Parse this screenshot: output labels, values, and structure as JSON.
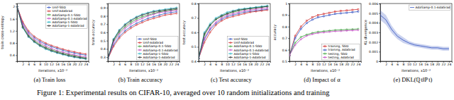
{
  "caption": "Figure 1: Experimental results on CIFAR-10, averaged over 10 random initializations and training",
  "chart_data": [
    {
      "type": "line",
      "title": "(a) Train loss",
      "x_label": "iterations, x10⁻³",
      "y_label": "train cross-entropy",
      "x": [
        0,
        2,
        4,
        6,
        8,
        10,
        12,
        14,
        16,
        18,
        20,
        22,
        24
      ],
      "xlim": [
        0,
        25
      ],
      "xticks": [
        2,
        4,
        6,
        8,
        10,
        12,
        14,
        16,
        18,
        20,
        22,
        24
      ],
      "ylim": [
        0.2,
        2.1
      ],
      "yticks": [
        0.4,
        0.8,
        1.2,
        1.6,
        2.0
      ],
      "grid": false,
      "legend": "upper right",
      "series": [
        {
          "name": "Unif-SGD",
          "color": "#3050c0",
          "marker": "circle",
          "values": [
            2.0,
            1.45,
            1.15,
            0.98,
            0.85,
            0.76,
            0.68,
            0.62,
            0.56,
            0.51,
            0.47,
            0.43,
            0.4
          ]
        },
        {
          "name": "Unif-AdaGrad",
          "color": "#d03030",
          "marker": "circle",
          "values": [
            2.0,
            1.5,
            1.2,
            1.02,
            0.9,
            0.8,
            0.72,
            0.66,
            0.6,
            0.55,
            0.51,
            0.47,
            0.44
          ]
        },
        {
          "name": "AdaSamp-0.1-SGD",
          "color": "#30a030",
          "marker": "circle",
          "values": [
            2.0,
            1.35,
            1.05,
            0.88,
            0.75,
            0.66,
            0.58,
            0.52,
            0.46,
            0.42,
            0.38,
            0.34,
            0.31
          ]
        },
        {
          "name": "AdaSamp-0.1-AdaGrad",
          "color": "#c040c0",
          "marker": "circle",
          "values": [
            2.0,
            1.4,
            1.1,
            0.92,
            0.8,
            0.7,
            0.62,
            0.55,
            0.5,
            0.45,
            0.41,
            0.37,
            0.34
          ]
        },
        {
          "name": "AdaSamp-1-SGD",
          "color": "#20b0c0",
          "marker": "circle",
          "values": [
            2.0,
            1.3,
            1.0,
            0.83,
            0.7,
            0.6,
            0.53,
            0.47,
            0.42,
            0.37,
            0.33,
            0.3,
            0.27
          ]
        },
        {
          "name": "AdaSamp-1-AdaGrad",
          "color": "#333333",
          "marker": "circle",
          "values": [
            2.0,
            1.32,
            1.02,
            0.85,
            0.72,
            0.63,
            0.55,
            0.49,
            0.44,
            0.39,
            0.35,
            0.32,
            0.29
          ]
        }
      ]
    },
    {
      "type": "line",
      "title": "(b) Train accuracy",
      "x_label": "iterations, x10⁻³",
      "y_label": "train accuracy",
      "x": [
        0,
        2,
        4,
        6,
        8,
        10,
        12,
        14,
        16,
        18,
        20,
        22,
        24
      ],
      "xlim": [
        0,
        25
      ],
      "xticks": [
        2,
        4,
        6,
        8,
        10,
        12,
        14,
        16,
        18,
        20,
        22,
        24
      ],
      "ylim": [
        0.25,
        0.95
      ],
      "yticks": [
        0.3,
        0.4,
        0.5,
        0.6,
        0.7,
        0.8,
        0.9
      ],
      "grid": false,
      "legend": "lower right",
      "series": [
        {
          "name": "Unif-SGD",
          "color": "#3050c0",
          "marker": "circle",
          "values": [
            0.28,
            0.45,
            0.55,
            0.62,
            0.67,
            0.71,
            0.74,
            0.77,
            0.79,
            0.81,
            0.83,
            0.84,
            0.85
          ]
        },
        {
          "name": "Unif-AdaGrad",
          "color": "#d03030",
          "marker": "circle",
          "values": [
            0.28,
            0.43,
            0.53,
            0.6,
            0.65,
            0.69,
            0.72,
            0.75,
            0.77,
            0.79,
            0.81,
            0.82,
            0.83
          ]
        },
        {
          "name": "AdaSamp-0.1-SGD",
          "color": "#30a030",
          "marker": "circle",
          "values": [
            0.28,
            0.5,
            0.6,
            0.67,
            0.72,
            0.76,
            0.79,
            0.81,
            0.83,
            0.85,
            0.86,
            0.87,
            0.88
          ]
        },
        {
          "name": "AdaSamp-0.1-AdaGrad",
          "color": "#c040c0",
          "marker": "circle",
          "values": [
            0.28,
            0.48,
            0.58,
            0.65,
            0.7,
            0.74,
            0.77,
            0.8,
            0.82,
            0.84,
            0.85,
            0.86,
            0.87
          ]
        },
        {
          "name": "AdaSamp-1-SGD",
          "color": "#20b0c0",
          "marker": "circle",
          "values": [
            0.28,
            0.52,
            0.63,
            0.7,
            0.75,
            0.79,
            0.82,
            0.84,
            0.86,
            0.87,
            0.88,
            0.89,
            0.9
          ]
        },
        {
          "name": "AdaSamp-1-AdaGrad",
          "color": "#333333",
          "marker": "circle",
          "values": [
            0.28,
            0.51,
            0.62,
            0.69,
            0.74,
            0.78,
            0.81,
            0.83,
            0.85,
            0.86,
            0.87,
            0.88,
            0.89
          ]
        }
      ]
    },
    {
      "type": "line",
      "title": "(c) Test accuracy",
      "x_label": "iterations, x10⁻³",
      "y_label": "test accuracy",
      "x": [
        0,
        2,
        4,
        6,
        8,
        10,
        12,
        14,
        16,
        18,
        20,
        22,
        24
      ],
      "xlim": [
        0,
        25
      ],
      "xticks": [
        2,
        4,
        6,
        8,
        10,
        12,
        14,
        16,
        18,
        20,
        22,
        24
      ],
      "ylim": [
        0.4,
        0.8
      ],
      "yticks": [
        0.4,
        0.5,
        0.6,
        0.7,
        0.8
      ],
      "grid": false,
      "legend": "lower right",
      "series": [
        {
          "name": "Unif-SGD",
          "color": "#3050c0",
          "marker": "circle",
          "values": [
            0.42,
            0.55,
            0.62,
            0.66,
            0.69,
            0.71,
            0.72,
            0.73,
            0.74,
            0.745,
            0.75,
            0.755,
            0.76
          ]
        },
        {
          "name": "Unif-AdaGrad",
          "color": "#d03030",
          "marker": "circle",
          "values": [
            0.42,
            0.53,
            0.6,
            0.65,
            0.68,
            0.7,
            0.71,
            0.72,
            0.73,
            0.74,
            0.745,
            0.75,
            0.755
          ]
        },
        {
          "name": "AdaSamp-0.1-SGD",
          "color": "#30a030",
          "marker": "circle",
          "values": [
            0.42,
            0.58,
            0.65,
            0.69,
            0.71,
            0.73,
            0.74,
            0.75,
            0.76,
            0.765,
            0.77,
            0.775,
            0.78
          ]
        },
        {
          "name": "AdaSamp-0.1-AdaGrad",
          "color": "#c040c0",
          "marker": "circle",
          "values": [
            0.42,
            0.56,
            0.63,
            0.67,
            0.7,
            0.72,
            0.73,
            0.74,
            0.75,
            0.755,
            0.76,
            0.765,
            0.77
          ]
        },
        {
          "name": "AdaSamp-1-SGD",
          "color": "#20b0c0",
          "marker": "circle",
          "values": [
            0.42,
            0.6,
            0.66,
            0.7,
            0.72,
            0.74,
            0.75,
            0.76,
            0.765,
            0.77,
            0.775,
            0.78,
            0.785
          ]
        },
        {
          "name": "AdaSamp-1-AdaGrad",
          "color": "#333333",
          "marker": "circle",
          "values": [
            0.42,
            0.59,
            0.65,
            0.69,
            0.715,
            0.73,
            0.745,
            0.755,
            0.76,
            0.765,
            0.77,
            0.775,
            0.78
          ]
        }
      ]
    },
    {
      "type": "line",
      "title": "(d) Impact of α",
      "x_label": "iterations, x10⁻³",
      "y_label": "accuracy",
      "x": [
        0,
        2,
        4,
        6,
        8,
        10,
        12,
        14,
        16,
        18,
        20,
        22,
        24
      ],
      "xlim": [
        0,
        25
      ],
      "xticks": [
        2,
        4,
        6,
        8,
        10,
        12,
        14,
        16,
        18,
        20,
        22,
        24
      ],
      "ylim": [
        0.5,
        1.0
      ],
      "yticks": [
        0.5,
        0.6,
        0.7,
        0.8,
        0.9,
        1.0
      ],
      "grid": false,
      "legend": "lower right",
      "series": [
        {
          "name": "training, SGD",
          "color": "#d03030",
          "marker": "square",
          "values": [
            0.55,
            0.72,
            0.8,
            0.85,
            0.88,
            0.9,
            0.91,
            0.92,
            0.93,
            0.935,
            0.94,
            0.945,
            0.95
          ]
        },
        {
          "name": "training, AdaGrad",
          "color": "#3050c0",
          "marker": "square",
          "values": [
            0.55,
            0.7,
            0.78,
            0.83,
            0.86,
            0.88,
            0.89,
            0.9,
            0.91,
            0.915,
            0.92,
            0.925,
            0.93
          ]
        },
        {
          "name": "testing, SGD",
          "color": "#30a030",
          "marker": "circle",
          "values": [
            0.55,
            0.66,
            0.71,
            0.73,
            0.745,
            0.755,
            0.76,
            0.765,
            0.77,
            0.772,
            0.775,
            0.777,
            0.78
          ]
        },
        {
          "name": "testing, AdaGrad",
          "color": "#c040c0",
          "marker": "circle",
          "values": [
            0.55,
            0.64,
            0.69,
            0.72,
            0.735,
            0.745,
            0.75,
            0.755,
            0.76,
            0.762,
            0.765,
            0.767,
            0.77
          ]
        }
      ]
    },
    {
      "type": "line",
      "title": "(e) DKL(ℚt‖ℙt)",
      "x_label": "iterations, x10⁻³",
      "y_label": "KL divergence",
      "x": [
        0,
        2,
        4,
        6,
        8,
        10,
        12,
        14,
        16,
        18,
        20,
        22,
        24
      ],
      "xlim": [
        0,
        25
      ],
      "xticks": [
        2,
        4,
        6,
        8,
        10,
        12,
        14,
        16,
        18,
        20,
        22,
        24
      ],
      "ylim": [
        0,
        0.006
      ],
      "yticks": [
        0,
        0.001,
        0.002,
        0.003,
        0.004,
        0.005,
        0.006
      ],
      "grid": false,
      "legend": "upper right",
      "series": [
        {
          "name": "AdaSamp-0.1-AdaGrad",
          "color": "#3050c0",
          "marker": "none",
          "values": [
            0.0048,
            0.0043,
            0.0033,
            0.0026,
            0.0022,
            0.0019,
            0.0017,
            0.0016,
            0.0015,
            0.0014,
            0.0014,
            0.0013,
            0.0013
          ],
          "errors": [
            0.0005,
            0.0005,
            0.0004,
            0.0003,
            0.0003,
            0.0002,
            0.0002,
            0.0002,
            0.0002,
            0.0002,
            0.0002,
            0.0002,
            0.0002
          ]
        }
      ]
    }
  ]
}
